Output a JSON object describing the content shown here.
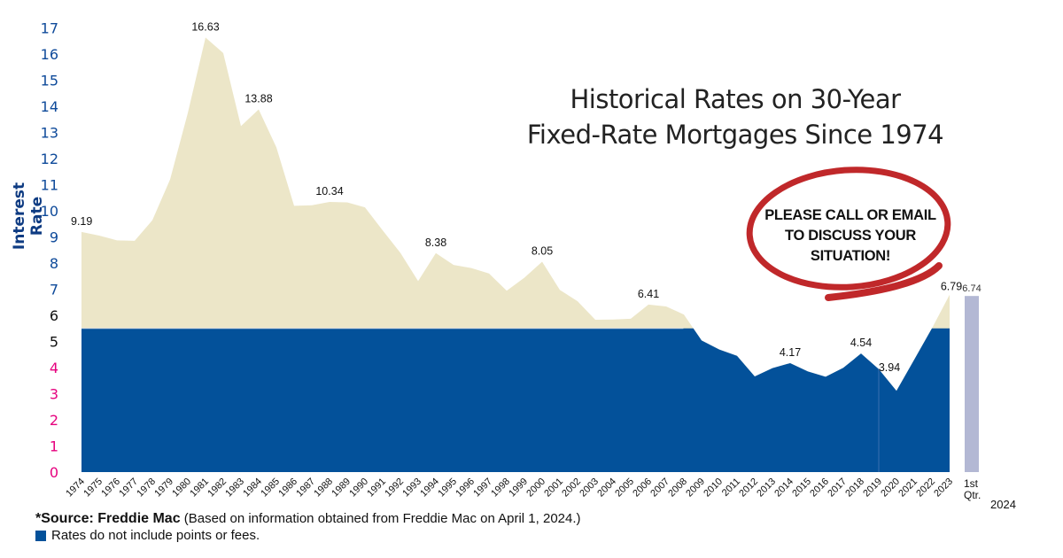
{
  "title": {
    "line1": "Historical Rates on 30-Year",
    "line2": "Fixed-Rate Mortgages Since 1974"
  },
  "callout": {
    "line1": "PLEASE CALL OR EMAIL",
    "line2": "TO DISCUSS YOUR",
    "line3": "SITUATION!"
  },
  "footer": {
    "source_bold": "*Source: Freddie Mac",
    "source_rest": " (Based on information obtained from Freddie Mac on April 1, 2024.)",
    "note": "Rates do not include points or fees."
  },
  "colors": {
    "upper_fill": "#ece6c8",
    "lower_fill": "#03519a",
    "bar_2024": "#b3b8d4",
    "axis_blue": "#0e4a9a",
    "axis_black": "#111111",
    "axis_pink": "#e6007e",
    "callout_red": "#c0282a"
  },
  "chart_data": {
    "type": "area",
    "title": "Historical Rates on 30-Year Fixed-Rate Mortgages Since 1974",
    "xlabel": "",
    "ylabel": "Interest Rate",
    "ylim": [
      0,
      17
    ],
    "yticks": [
      0,
      1,
      2,
      3,
      4,
      5,
      6,
      7,
      8,
      9,
      10,
      11,
      12,
      13,
      14,
      15,
      16,
      17
    ],
    "threshold_band": 5.5,
    "grid": false,
    "categories": [
      "1974",
      "1975",
      "1976",
      "1977",
      "1978",
      "1979",
      "1980",
      "1981",
      "1982",
      "1983",
      "1984",
      "1985",
      "1986",
      "1987",
      "1988",
      "1989",
      "1990",
      "1991",
      "1992",
      "1993",
      "1994",
      "1995",
      "1996",
      "1997",
      "1998",
      "1999",
      "2000",
      "2001",
      "2002",
      "2003",
      "2004",
      "2005",
      "2006",
      "2007",
      "2008",
      "2009",
      "2010",
      "2011",
      "2012",
      "2013",
      "2014",
      "2015",
      "2016",
      "2017",
      "2018",
      "2019",
      "2020",
      "2021",
      "2022",
      "2023"
    ],
    "values": [
      9.19,
      9.05,
      8.87,
      8.85,
      9.64,
      11.2,
      13.74,
      16.63,
      16.04,
      13.24,
      13.88,
      12.43,
      10.19,
      10.21,
      10.34,
      10.32,
      10.13,
      9.25,
      8.39,
      7.31,
      8.38,
      7.93,
      7.81,
      7.6,
      6.94,
      7.44,
      8.05,
      6.97,
      6.54,
      5.83,
      5.84,
      5.87,
      6.41,
      6.34,
      6.03,
      5.04,
      4.69,
      4.45,
      3.66,
      3.98,
      4.17,
      3.85,
      3.65,
      3.99,
      4.54,
      3.94,
      3.11,
      4.3,
      5.5,
      6.79
    ],
    "labeled_points": [
      {
        "x": "1974",
        "label": "9.19"
      },
      {
        "x": "1981",
        "label": "16.63"
      },
      {
        "x": "1984",
        "label": "13.88"
      },
      {
        "x": "1988",
        "label": "10.34"
      },
      {
        "x": "1994",
        "label": "8.38"
      },
      {
        "x": "2000",
        "label": "8.05"
      },
      {
        "x": "2006",
        "label": "6.41"
      },
      {
        "x": "2014",
        "label": "4.17"
      },
      {
        "x": "2018",
        "label": "4.54"
      },
      {
        "x": "2019",
        "label": "3.94"
      },
      {
        "x": "2023",
        "label": "6.79"
      }
    ],
    "extra_bar": {
      "label_line1": "1st",
      "label_line2": "Qtr.",
      "year": "2024",
      "value": 6.74,
      "value_label": "6.74"
    }
  }
}
